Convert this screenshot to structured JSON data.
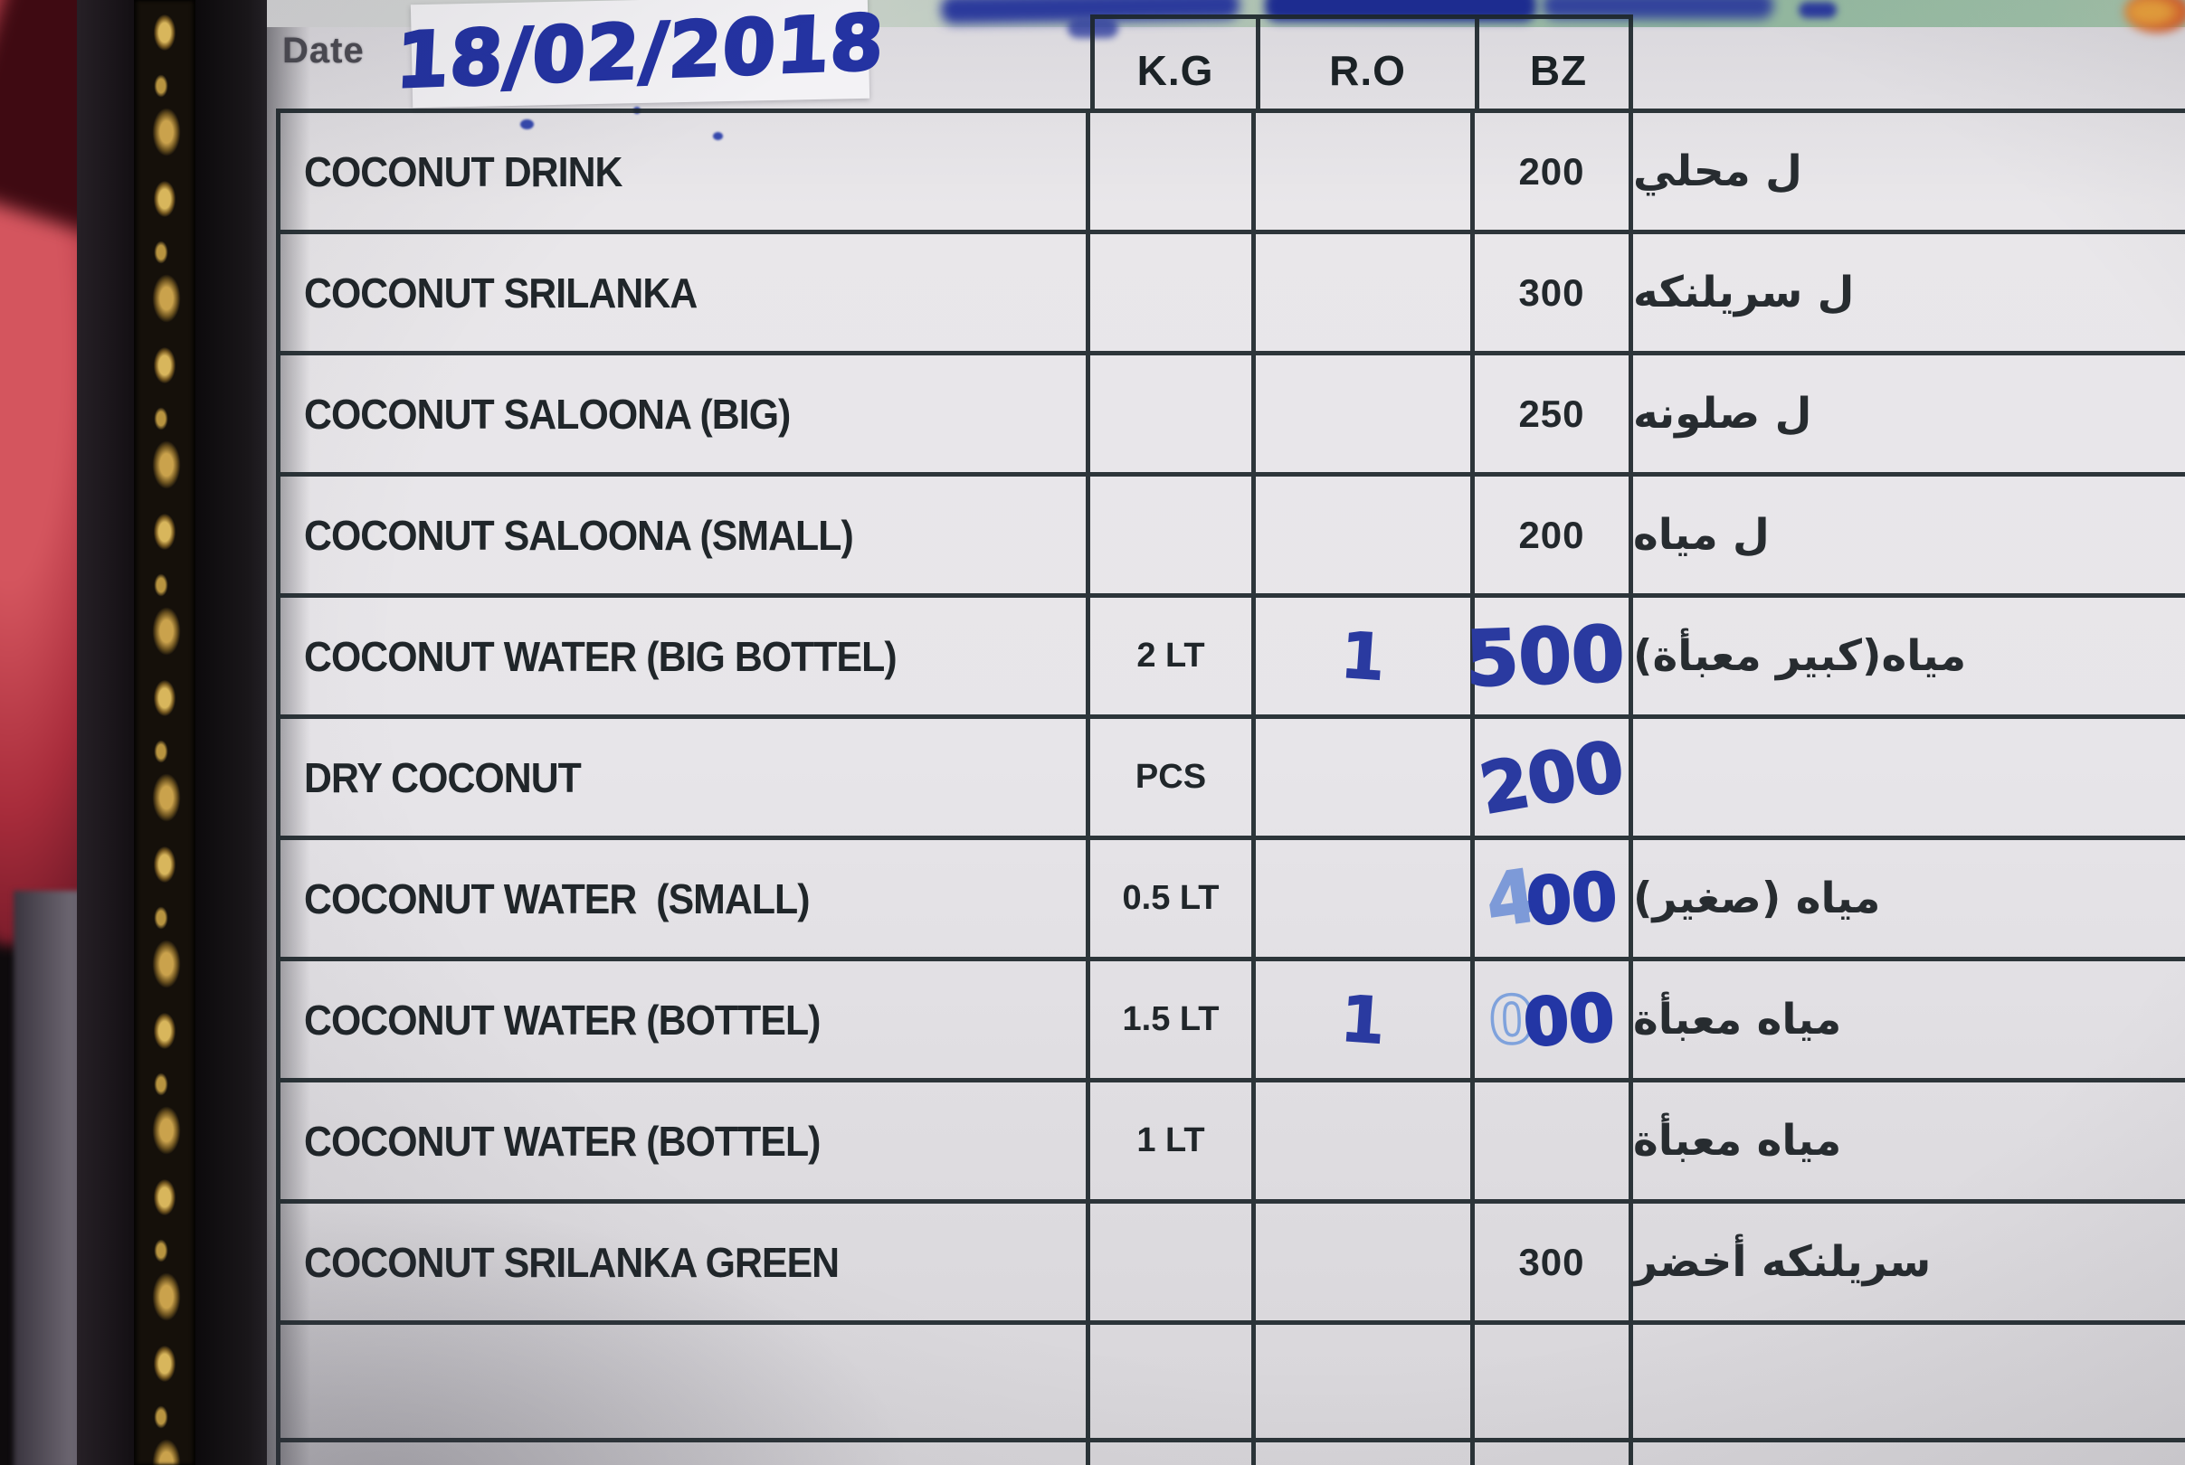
{
  "photo": {
    "date_label": "Date",
    "date_value": "18/02/2018"
  },
  "table": {
    "columns": {
      "unit": "K.G",
      "ro": "R.O",
      "bz": "BZ"
    },
    "rows": [
      {
        "name": "COCONUT DRINK",
        "unit": "",
        "ro_hand": "",
        "bz_print": "200",
        "arabic": "ل محلي"
      },
      {
        "name": "COCONUT SRILANKA",
        "unit": "",
        "ro_hand": "",
        "bz_print": "300",
        "arabic": "ل سريلنكه"
      },
      {
        "name": "COCONUT SALOONA (BIG)",
        "unit": "",
        "ro_hand": "",
        "bz_print": "250",
        "arabic": "ل صلونه"
      },
      {
        "name": "COCONUT SALOONA (SMALL)",
        "unit": "",
        "ro_hand": "",
        "bz_print": "200",
        "arabic": "ل مياه"
      },
      {
        "name": "COCONUT WATER (BIG BOTTEL)",
        "unit": "2 LT",
        "ro_hand": "1",
        "bz_hand": "500",
        "arabic": "مياه(كبير معبأة)"
      },
      {
        "name": "DRY COCONUT",
        "unit": "PCS",
        "ro_hand": "",
        "bz_hand": "200",
        "arabic": ""
      },
      {
        "name": "COCONUT WATER  (SMALL)",
        "unit": "0.5 LT",
        "ro_hand": "",
        "bz_hand_light": "4",
        "bz_hand_dark": "00",
        "arabic": "مياه (صغير)"
      },
      {
        "name": "COCONUT WATER (BOTTEL)",
        "unit": "1.5 LT",
        "ro_hand": "1",
        "bz_hand_light": "0",
        "bz_hand_dark": "00",
        "arabic": "مياه معبأة"
      },
      {
        "name": "COCONUT WATER (BOTTEL)",
        "unit": "1 LT",
        "ro_hand": "",
        "bz_print": "",
        "arabic": "مياه معبأة"
      },
      {
        "name": "COCONUT SRILANKA GREEN",
        "unit": "",
        "ro_hand": "",
        "bz_print": "300",
        "arabic": "سريلنكه أخضر"
      },
      {
        "name": "",
        "unit": "",
        "ro_hand": "",
        "bz_print": "",
        "arabic": ""
      }
    ]
  },
  "colors": {
    "handwriting_blue": "#2a3aa0",
    "handwriting_light_blue": "#7d9ad8",
    "table_line": "#222c30",
    "board": "#e6e4e8",
    "top_strip_green": "#8fb49c",
    "frame_gold": "#caa24c",
    "fabric_red": "#a82c3b"
  }
}
